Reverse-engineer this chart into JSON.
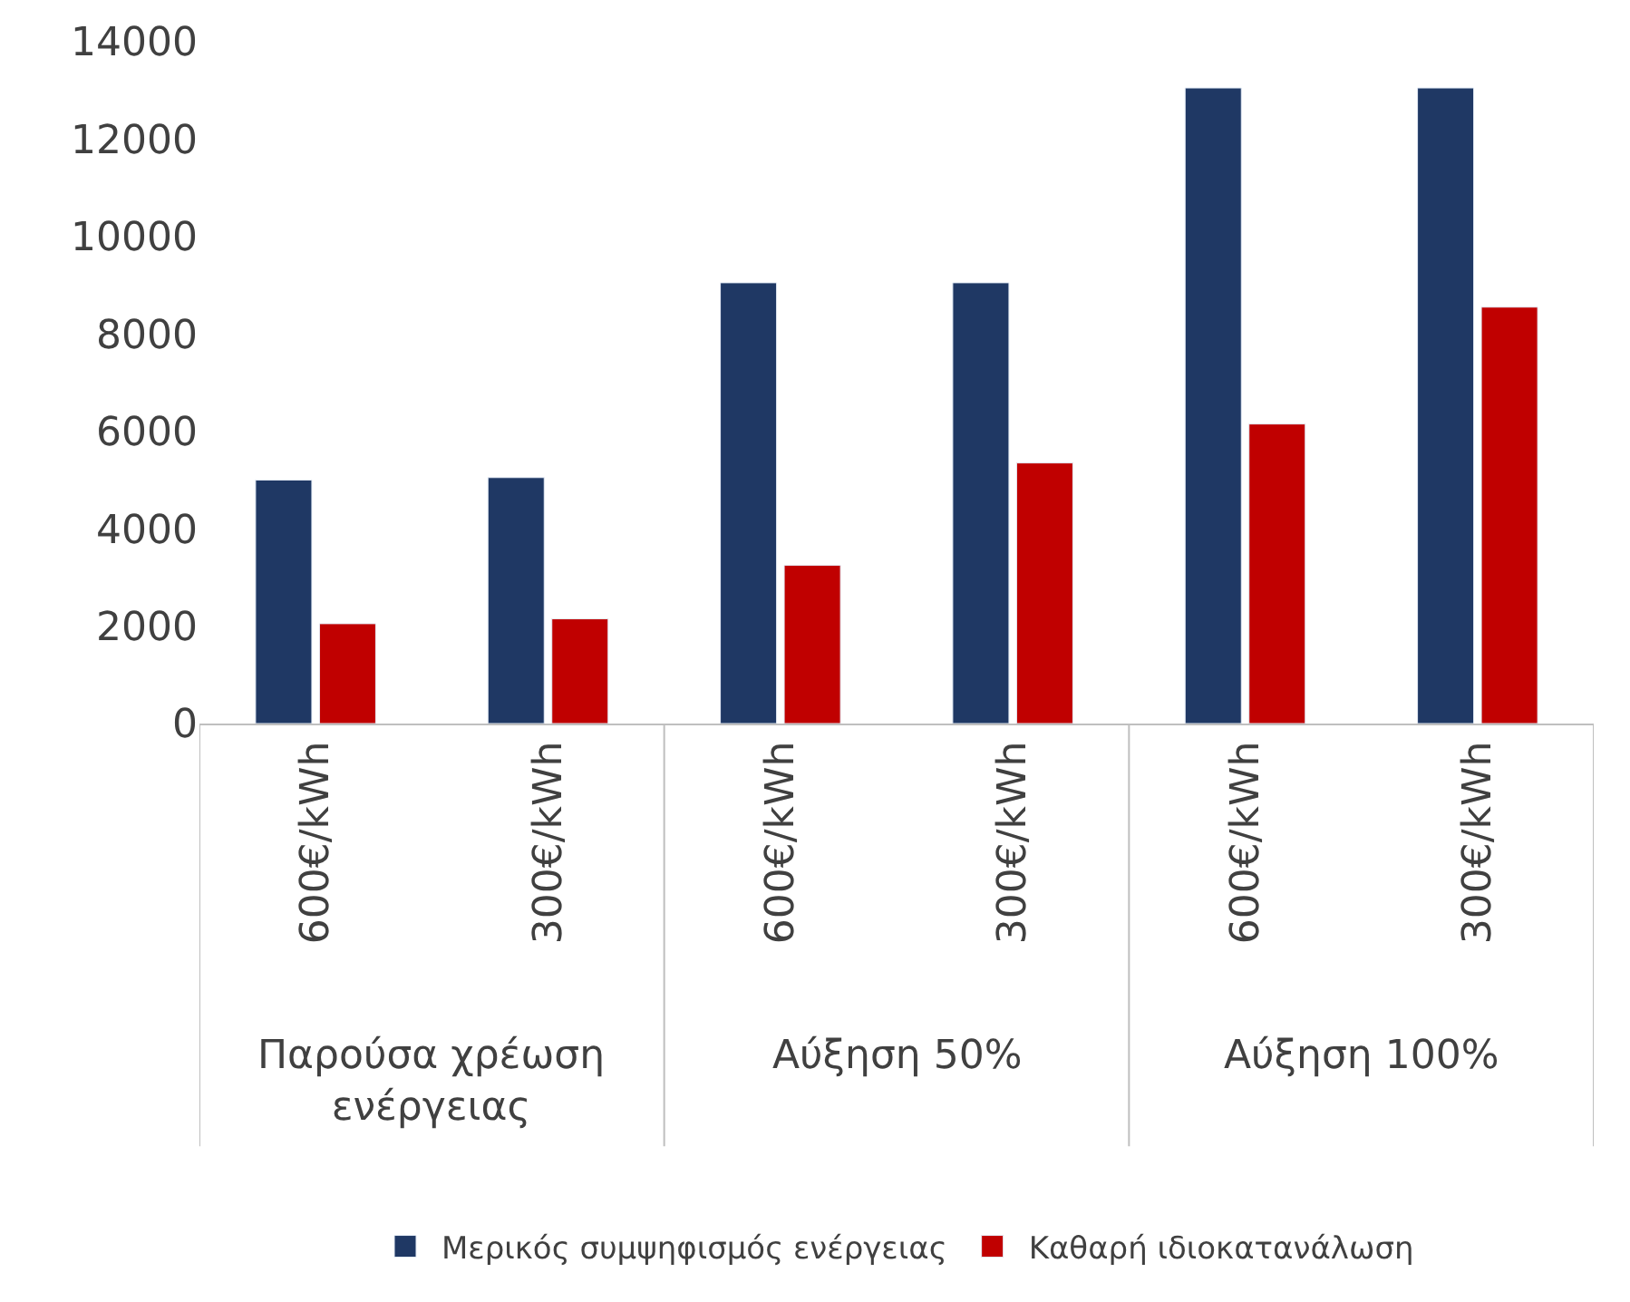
{
  "chart_data": {
    "type": "bar",
    "categories": [
      "600€/kWh",
      "300€/kWh",
      "600€/kWh",
      "300€/kWh",
      "600€/kWh",
      "300€/kWh"
    ],
    "series": [
      {
        "name": "Μερικός συμψηφισμός ενέργειας",
        "color": "#1f3864",
        "values": [
          5000,
          5050,
          9050,
          9050,
          13050,
          13050
        ]
      },
      {
        "name": "Καθαρή ιδιοκατανάλωση",
        "color": "#c00000",
        "values": [
          2050,
          2150,
          3250,
          5350,
          6150,
          8550
        ]
      }
    ],
    "annotations": [
      "Παρούσα χρέωση\nενέργειας",
      "Αύξηση 50%",
      "Αύξηση 100%"
    ],
    "ylim": [
      0,
      14000
    ],
    "yticks": [
      0,
      2000,
      4000,
      6000,
      8000,
      10000,
      12000,
      14000
    ],
    "legend": "bottom"
  }
}
